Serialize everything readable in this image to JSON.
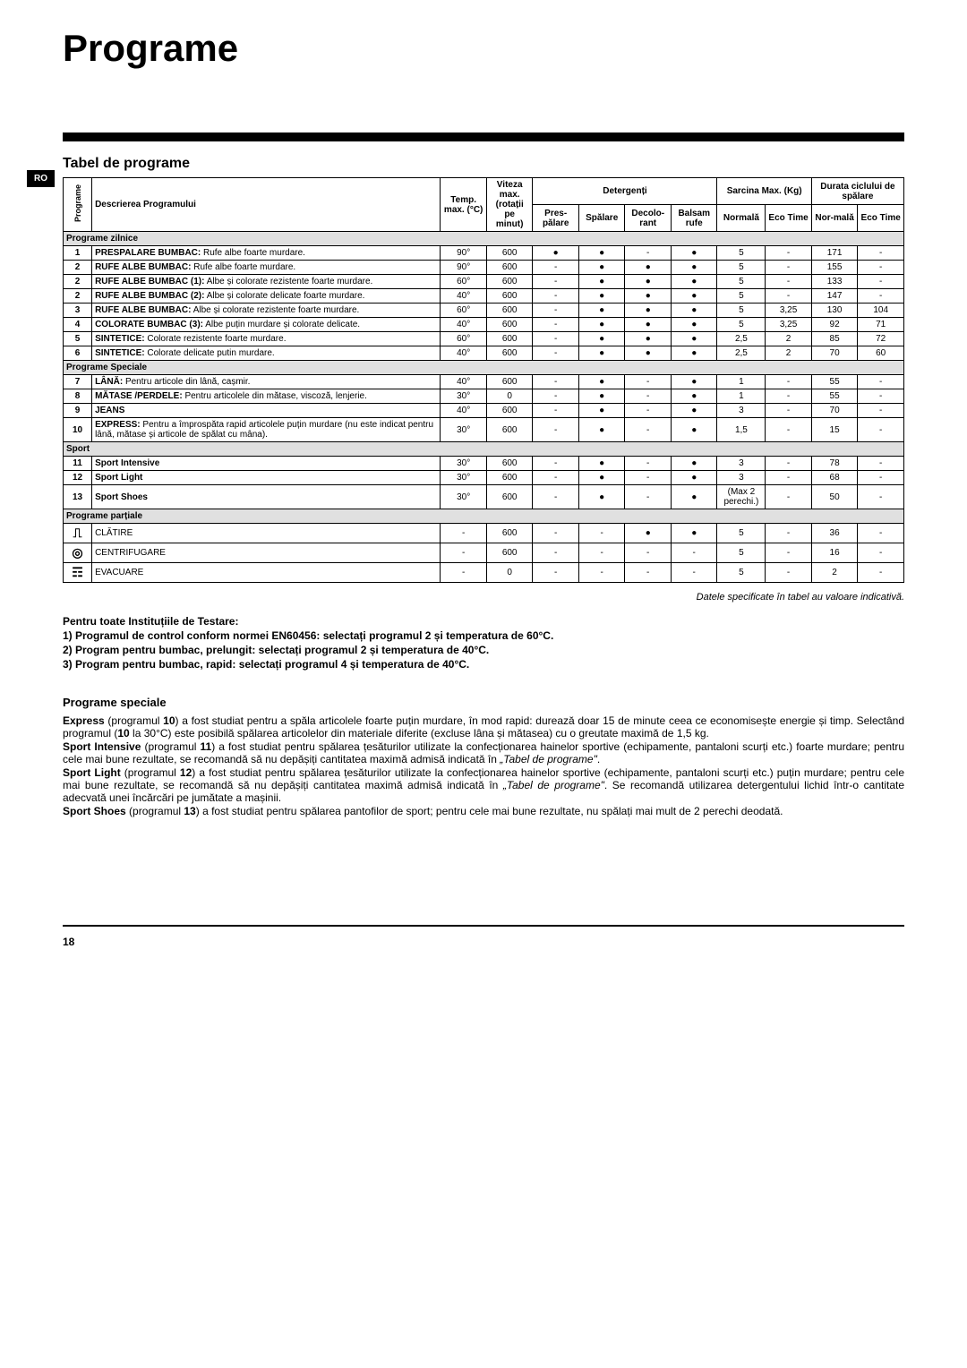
{
  "title": "Programe",
  "side_tab": "RO",
  "subtitle": "Tabel de programe",
  "headers": {
    "program_col": "Programe",
    "desc": "Descrierea Programului",
    "temp": "Temp. max. (°C)",
    "speed": "Viteza max. (rotații pe minut)",
    "detergents": "Detergenți",
    "prewash": "Pres-pălare",
    "wash": "Spălare",
    "bleach": "Decolo-rant",
    "softener": "Balsam rufe",
    "load": "Sarcina Max. (Kg)",
    "normal": "Normală",
    "eco_time": "Eco Time",
    "duration": "Durata ciclului de spălare",
    "dur_normal": "Nor-mală",
    "dur_eco": "Eco Time"
  },
  "sections": {
    "daily": "Programe zilnice",
    "special": "Programe Speciale",
    "sport": "Sport",
    "partial": "Programe parțiale"
  },
  "rows": [
    {
      "num": "1",
      "desc": "<b>PRESPALARE  BUMBAC:</b> Rufe albe foarte murdare.",
      "temp": "90°",
      "speed": "600",
      "pre": "●",
      "wash": "●",
      "bleach": "-",
      "soft": "●",
      "norm": "5",
      "eco": "-",
      "dn": "171",
      "de": "-"
    },
    {
      "num": "2",
      "desc": "<b>RUFE ALBE BUMBAC:</b>  Rufe albe foarte murdare.",
      "temp": "90°",
      "speed": "600",
      "pre": "-",
      "wash": "●",
      "bleach": "●",
      "soft": "●",
      "norm": "5",
      "eco": "-",
      "dn": "155",
      "de": "-"
    },
    {
      "num": "2",
      "desc": "<b>RUFE ALBE BUMBAC (1):</b> Albe și colorate rezistente foarte murdare.",
      "temp": "60°",
      "speed": "600",
      "pre": "-",
      "wash": "●",
      "bleach": "●",
      "soft": "●",
      "norm": "5",
      "eco": "-",
      "dn": "133",
      "de": "-"
    },
    {
      "num": "2",
      "desc": "<b>RUFE ALBE BUMBAC (2):</b> Albe și colorate delicate foarte murdare.",
      "temp": "40°",
      "speed": "600",
      "pre": "-",
      "wash": "●",
      "bleach": "●",
      "soft": "●",
      "norm": "5",
      "eco": "-",
      "dn": "147",
      "de": "-"
    },
    {
      "num": "3",
      "desc": "<b>RUFE ALBE BUMBAC:</b> Albe și colorate rezistente foarte murdare.",
      "temp": "60°",
      "speed": "600",
      "pre": "-",
      "wash": "●",
      "bleach": "●",
      "soft": "●",
      "norm": "5",
      "eco": "3,25",
      "dn": "130",
      "de": "104"
    },
    {
      "num": "4",
      "desc": "<b>COLORATE BUMBAC (3):</b> Albe puțin murdare și colorate delicate.",
      "temp": "40°",
      "speed": "600",
      "pre": "-",
      "wash": "●",
      "bleach": "●",
      "soft": "●",
      "norm": "5",
      "eco": "3,25",
      "dn": "92",
      "de": "71"
    },
    {
      "num": "5",
      "desc": "<b>SINTETICE:</b> Colorate rezistente foarte murdare.",
      "temp": "60°",
      "speed": "600",
      "pre": "-",
      "wash": "●",
      "bleach": "●",
      "soft": "●",
      "norm": "2,5",
      "eco": "2",
      "dn": "85",
      "de": "72"
    },
    {
      "num": "6",
      "desc": "<b>SINTETICE:</b> Colorate delicate putin murdare.",
      "temp": "40°",
      "speed": "600",
      "pre": "-",
      "wash": "●",
      "bleach": "●",
      "soft": "●",
      "norm": "2,5",
      "eco": "2",
      "dn": "70",
      "de": "60"
    },
    {
      "num": "7",
      "desc": "<b>LÂNĂ:</b> Pentru articole din lână, cașmir.",
      "temp": "40°",
      "speed": "600",
      "pre": "-",
      "wash": "●",
      "bleach": "-",
      "soft": "●",
      "norm": "1",
      "eco": "-",
      "dn": "55",
      "de": "-"
    },
    {
      "num": "8",
      "desc": "<b>MĂTASE /PERDELE:</b> Pentru articolele din mătase, viscoză, lenjerie.",
      "temp": "30°",
      "speed": "0",
      "pre": "-",
      "wash": "●",
      "bleach": "-",
      "soft": "●",
      "norm": "1",
      "eco": "-",
      "dn": "55",
      "de": "-"
    },
    {
      "num": "9",
      "desc": "<b>JEANS</b>",
      "temp": "40°",
      "speed": "600",
      "pre": "-",
      "wash": "●",
      "bleach": "-",
      "soft": "●",
      "norm": "3",
      "eco": "-",
      "dn": "70",
      "de": "-"
    },
    {
      "num": "10",
      "desc": "<b>EXPRESS:</b> Pentru a împrospăta rapid articolele puțin murdare (nu este indicat pentru lână, mătase și articole de spălat cu mâna).",
      "temp": "30°",
      "speed": "600",
      "pre": "-",
      "wash": "●",
      "bleach": "-",
      "soft": "●",
      "norm": "1,5",
      "eco": "-",
      "dn": "15",
      "de": "-"
    },
    {
      "num": "11",
      "desc": "<b>Sport Intensive</b>",
      "temp": "30°",
      "speed": "600",
      "pre": "-",
      "wash": "●",
      "bleach": "-",
      "soft": "●",
      "norm": "3",
      "eco": "-",
      "dn": "78",
      "de": "-"
    },
    {
      "num": "12",
      "desc": "<b>Sport Light</b>",
      "temp": "30°",
      "speed": "600",
      "pre": "-",
      "wash": "●",
      "bleach": "-",
      "soft": "●",
      "norm": "3",
      "eco": "-",
      "dn": "68",
      "de": "-"
    },
    {
      "num": "13",
      "desc": "<b>Sport Shoes</b>",
      "temp": "30°",
      "speed": "600",
      "pre": "-",
      "wash": "●",
      "bleach": "-",
      "soft": "●",
      "norm": "(Max 2 perechi.)",
      "eco": "-",
      "dn": "50",
      "de": "-"
    },
    {
      "num": "rinse_icon",
      "desc": "CLĂTIRE",
      "temp": "-",
      "speed": "600",
      "pre": "-",
      "wash": "-",
      "bleach": "●",
      "soft": "●",
      "norm": "5",
      "eco": "-",
      "dn": "36",
      "de": "-"
    },
    {
      "num": "spin_icon",
      "desc": "CENTRIFUGARE",
      "temp": "-",
      "speed": "600",
      "pre": "-",
      "wash": "-",
      "bleach": "-",
      "soft": "-",
      "norm": "5",
      "eco": "-",
      "dn": "16",
      "de": "-"
    },
    {
      "num": "drain_icon",
      "desc": "EVACUARE",
      "temp": "-",
      "speed": "0",
      "pre": "-",
      "wash": "-",
      "bleach": "-",
      "soft": "-",
      "norm": "5",
      "eco": "-",
      "dn": "2",
      "de": "-"
    }
  ],
  "icons": {
    "rinse_icon": "⎍",
    "spin_icon": "◎",
    "drain_icon": "☶"
  },
  "note_right": "Datele specificate în tabel au valoare indicativă.",
  "testing": {
    "lead": "Pentru toate Instituțiile de Testare:",
    "l1": "1) Programul de control conform normei EN60456: selectați programul 2 și temperatura de 60°C.",
    "l2": "2) Program pentru bumbac, prelungit: selectați programul 2 și temperatura de 40°C.",
    "l3": "3) Program  pentru bumbac, rapid: selectați programul 4 și temperatura de 40°C."
  },
  "body": {
    "heading": "Programe speciale",
    "p1": "<b>Express</b> (programul <b>10</b>) a fost studiat pentru a spăla articolele foarte puțin murdare, în mod rapid: durează doar 15 de minute ceea ce economisește energie și timp. Selectând programul (<b>10</b> la 30°C) este posibilă spălarea articolelor din materiale diferite (excluse lâna și mătasea) cu o greutate maximă de 1,5 kg.",
    "p2": "<b>Sport Intensive</b> (programul <b>11</b>) a fost studiat pentru spălarea țesăturilor utilizate la confecționarea hainelor sportive (echipamente, pantaloni scurți etc.) foarte murdare; pentru cele mai bune rezultate, se recomandă să nu depășiți cantitatea maximă admisă indicată în <i>„Tabel de  programe\"</i>.",
    "p3": "<b>Sport Light</b> (programul <b>12</b>) a fost studiat pentru spălarea țesăturilor utilizate la confecționarea hainelor sportive (echipamente, pantaloni scurți etc.) puțin murdare; pentru cele mai bune rezultate, se recomandă să nu depășiți cantitatea maximă admisă indicată în <i>„Tabel de  programe\"</i>. Se recomandă utilizarea detergentului lichid într-o cantitate adecvată unei încărcări pe jumătate a mașinii.",
    "p4": "<b>Sport Shoes</b> (programul <b>13</b>) a fost studiat pentru spălarea pantofilor de sport; pentru cele mai bune rezultate, nu spălați mai mult de 2 perechi deodată."
  },
  "page_num": "18"
}
